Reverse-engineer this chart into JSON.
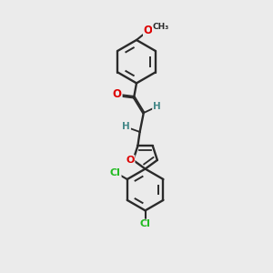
{
  "background_color": "#ebebeb",
  "bond_color": "#2a2a2a",
  "atom_colors": {
    "O": "#dd0000",
    "Cl": "#22bb22",
    "H": "#448888",
    "C": "#2a2a2a"
  },
  "figsize": [
    3.0,
    3.0
  ],
  "dpi": 100
}
